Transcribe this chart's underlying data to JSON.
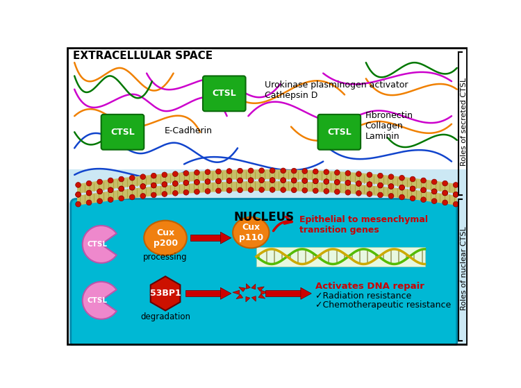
{
  "extracellular_label": "EXTRACELLULAR SPACE",
  "nucleus_label": "NUCLEUS",
  "roles_secreted": "Roles of secreted CTSL",
  "roles_nuclear": "Roles of nuclear CTSL",
  "ctsl_color": "#1a9e1a",
  "ctsl_label": "CTSL",
  "ecadherin_label": "E-Cadherin",
  "urokinase_label": "Urokinase plasminogen activator\nCathepsin D",
  "fibronectin_label": "Fibronectin\nCollagen\nLaminin",
  "cux_p200_label": "Cux\np200",
  "cux_p110_label": "Cux\np110",
  "processing_label": "processing",
  "s3bp1_label": "53BP1",
  "degradation_label": "degradation",
  "emt_label": "Epithelial to mesenchymal\ntransition genes",
  "dna_repair_line1": "Activates DNA repair",
  "dna_repair_line2": "✓Radiation resistance",
  "dna_repair_line3": "✓Chemotherapeutic resistance",
  "bg_extracell": "#ffffff",
  "bg_cell": "#cce8f0",
  "bg_nucleus": "#00b8d4",
  "membrane_fill": "#d4c870",
  "bead_color": "#cc1100",
  "arrow_color": "#cc0000",
  "ctsl_pac_color": "#ee88cc",
  "cux_color": "#f0800a",
  "s3bp1_color": "#cc1100",
  "frag_color": "#cc1100"
}
